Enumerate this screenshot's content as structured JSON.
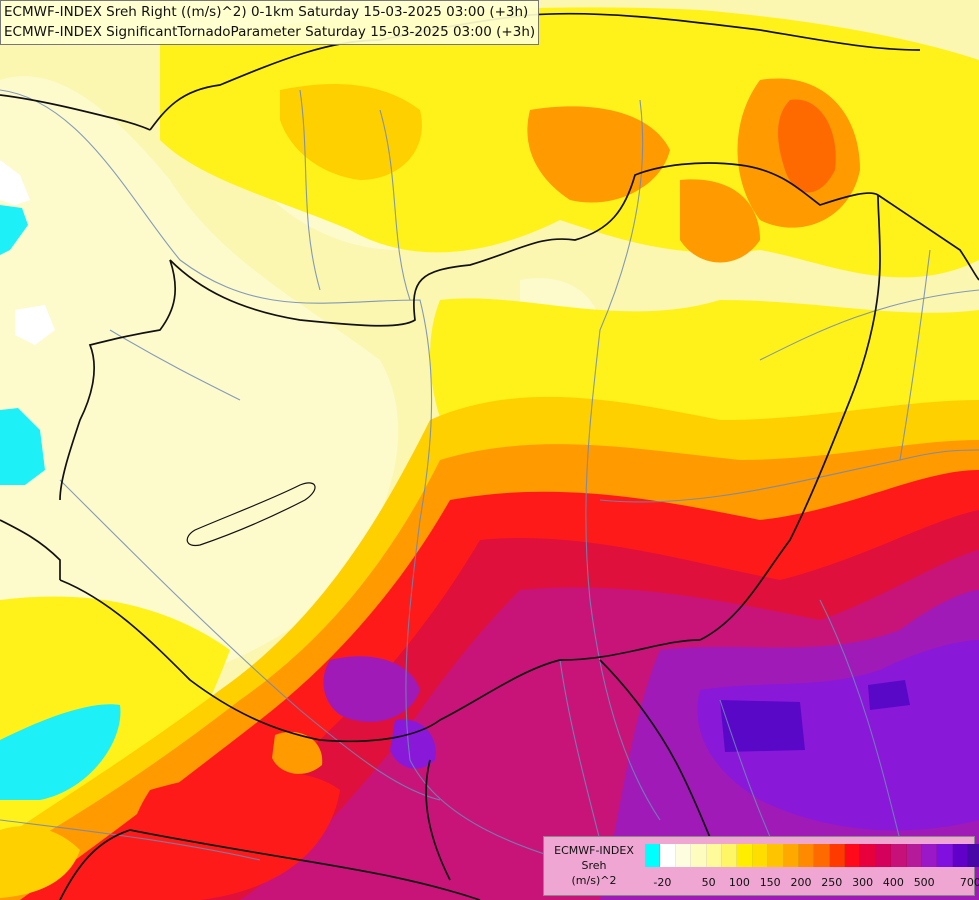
{
  "title_lines": [
    "ECMWF-INDEX Sreh Right ((m/s)^2) 0-1km Saturday 15-03-2025 03:00 (+3h)",
    "ECMWF-INDEX SignificantTornadoParameter Saturday 15-03-2025 03:00 (+3h)"
  ],
  "legend": {
    "title_lines": [
      "ECMWF-INDEX",
      "Sreh",
      "(m/s)^2"
    ],
    "colors": [
      "#00ffff",
      "#ffffff",
      "#fffde0",
      "#fffcc0",
      "#fffa9a",
      "#fff666",
      "#ffee00",
      "#ffdd00",
      "#ffc400",
      "#ffa800",
      "#ff8a00",
      "#ff6a00",
      "#ff3a00",
      "#ff0a1a",
      "#e8003c",
      "#d4005c",
      "#c8107a",
      "#b41a9a",
      "#9a18c8",
      "#8010e0",
      "#6000c8",
      "#4808a8",
      "#22007a"
    ],
    "tick_labels": [
      "-20",
      "50",
      "100",
      "150",
      "200",
      "250",
      "300",
      "400",
      "500",
      "700"
    ]
  },
  "palette": {
    "bg": "#fbf7b0",
    "pale": "#fdfbcc",
    "yellow": "#fff21a",
    "gold": "#ffd000",
    "orange": "#ff9a00",
    "deep_orange": "#ff6a00",
    "red": "#ff1a1a",
    "crimson": "#e0103c",
    "magenta": "#c81478",
    "purple": "#a01ab8",
    "violet": "#8a18d8",
    "indigo": "#5a08c8",
    "cyan": "#1ef0f8",
    "white": "#ffffff",
    "border": "#111111",
    "river": "#6c88b8"
  }
}
